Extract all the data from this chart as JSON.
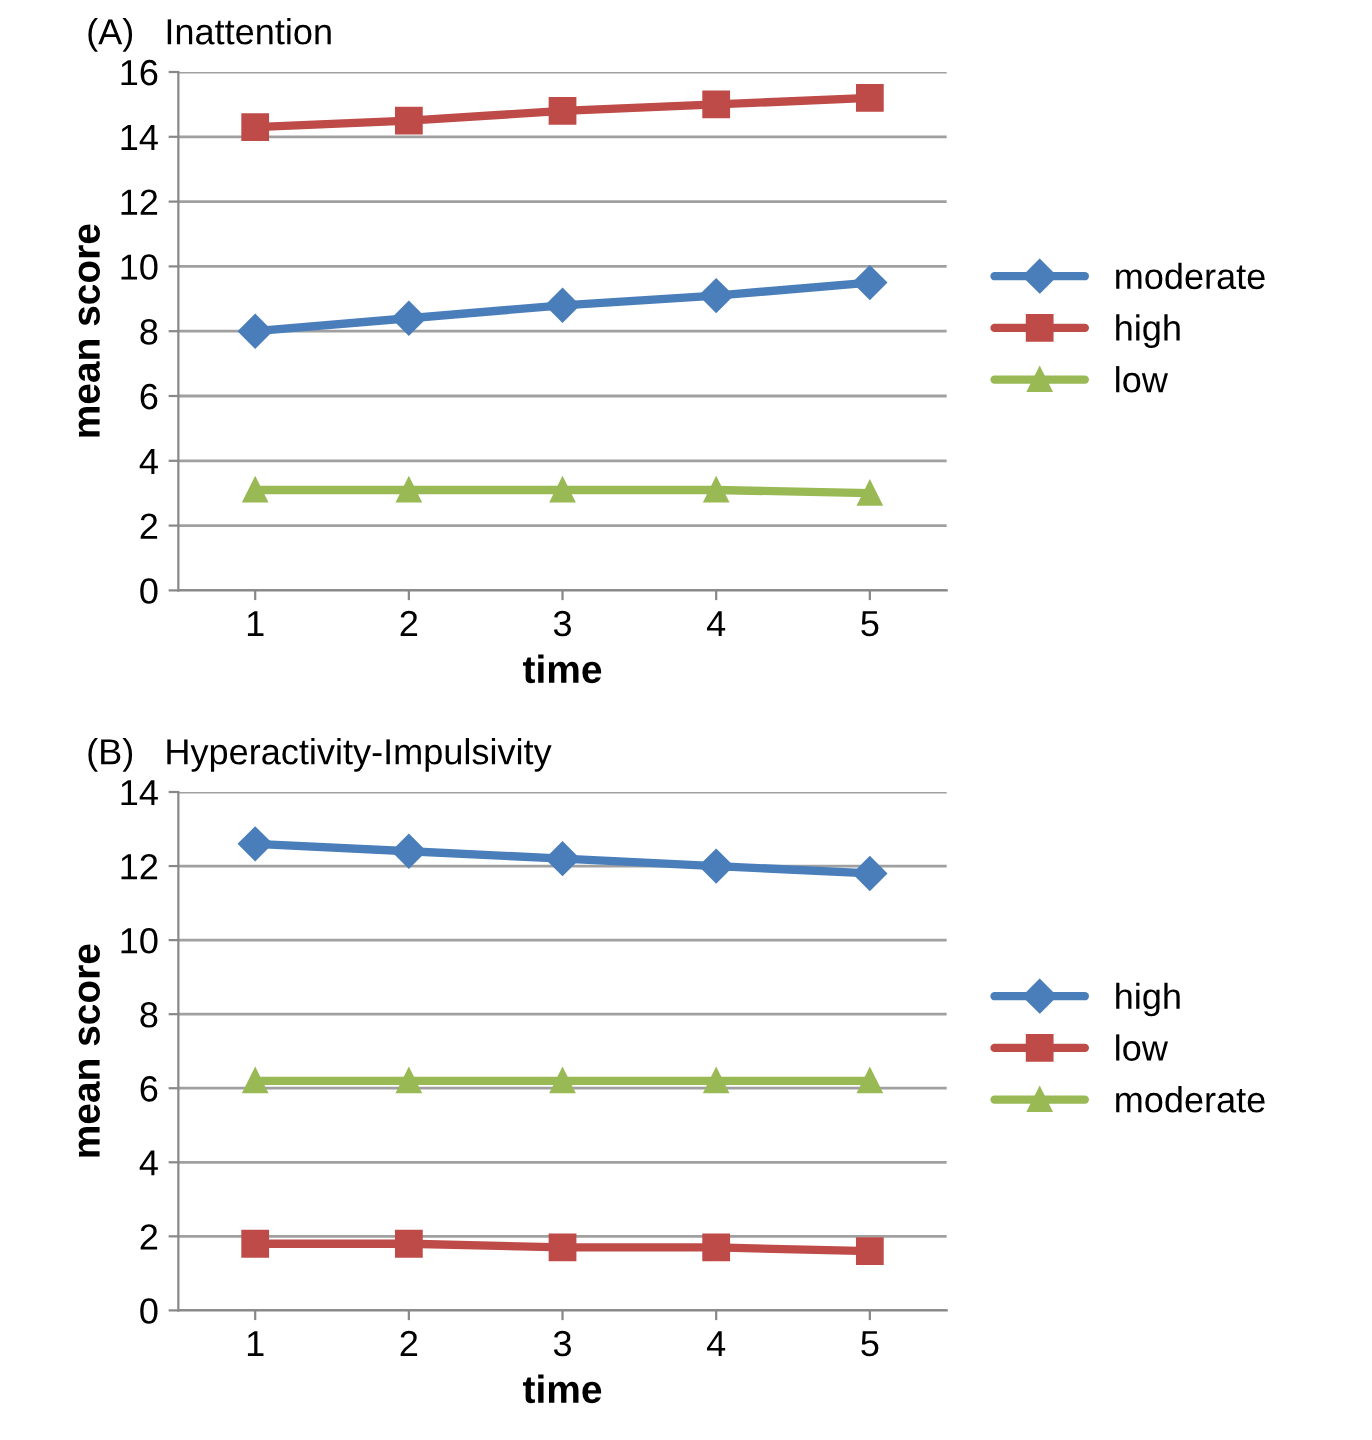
{
  "chart_data": [
    {
      "type": "line",
      "title": "(A)   Inattention",
      "xlabel": "time",
      "ylabel": "mean score",
      "categories": [
        "1",
        "2",
        "3",
        "4",
        "5"
      ],
      "ylim": [
        0,
        16
      ],
      "yticks": [
        0,
        2,
        4,
        6,
        8,
        10,
        12,
        14,
        16
      ],
      "grid": "y",
      "legend": "right",
      "series": [
        {
          "name": "moderate",
          "color": "#4a7ebb",
          "marker": "diamond",
          "values": [
            8.0,
            8.4,
            8.8,
            9.1,
            9.5
          ]
        },
        {
          "name": "high",
          "color": "#be4b48",
          "marker": "square",
          "values": [
            14.3,
            14.5,
            14.8,
            15.0,
            15.2
          ]
        },
        {
          "name": "low",
          "color": "#98b954",
          "marker": "triangle",
          "values": [
            3.1,
            3.1,
            3.1,
            3.1,
            3.0
          ]
        }
      ]
    },
    {
      "type": "line",
      "title": "(B)   Hyperactivity-Impulsivity",
      "xlabel": "time",
      "ylabel": "mean score",
      "categories": [
        "1",
        "2",
        "3",
        "4",
        "5"
      ],
      "ylim": [
        0,
        14
      ],
      "yticks": [
        0,
        2,
        4,
        6,
        8,
        10,
        12,
        14
      ],
      "grid": "y",
      "legend": "right",
      "series": [
        {
          "name": "high",
          "color": "#4a7ebb",
          "marker": "diamond",
          "values": [
            12.6,
            12.4,
            12.2,
            12.0,
            11.8
          ]
        },
        {
          "name": "low",
          "color": "#be4b48",
          "marker": "square",
          "values": [
            1.8,
            1.8,
            1.7,
            1.7,
            1.6
          ]
        },
        {
          "name": "moderate",
          "color": "#98b954",
          "marker": "triangle",
          "values": [
            6.2,
            6.2,
            6.2,
            6.2,
            6.2
          ]
        }
      ]
    }
  ]
}
